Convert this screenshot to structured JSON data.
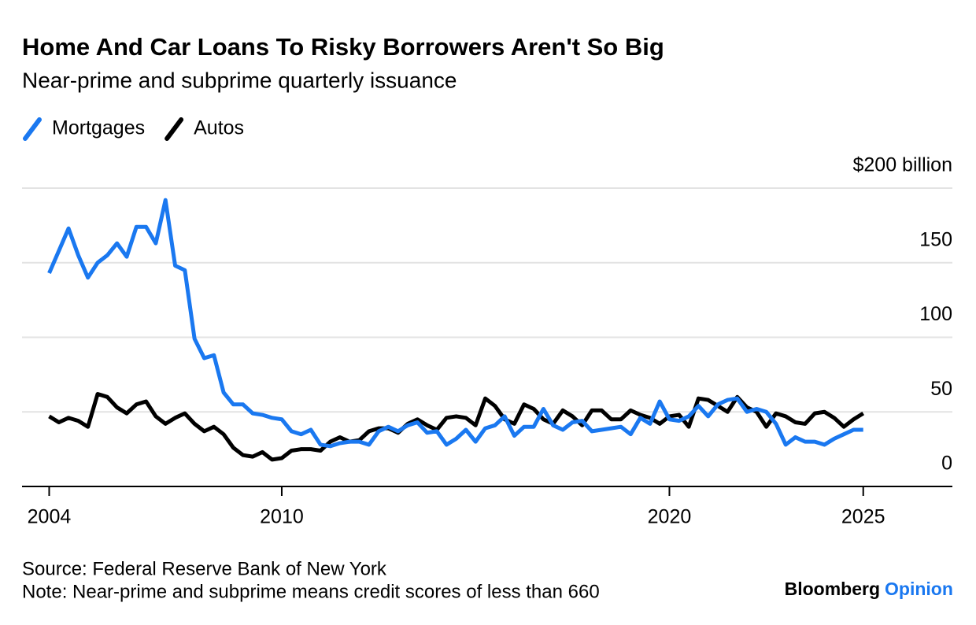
{
  "chart_data": {
    "type": "line",
    "title": "Home And Car Loans To Risky Borrowers Aren't So Big",
    "subtitle": "Near-prime and subprime quarterly issuance",
    "x": [
      2004,
      2004.25,
      2004.5,
      2004.75,
      2005,
      2005.25,
      2005.5,
      2005.75,
      2006,
      2006.25,
      2006.5,
      2006.75,
      2007,
      2007.25,
      2007.5,
      2007.75,
      2008,
      2008.25,
      2008.5,
      2008.75,
      2009,
      2009.25,
      2009.5,
      2009.75,
      2010,
      2010.25,
      2010.5,
      2010.75,
      2011,
      2011.25,
      2011.5,
      2011.75,
      2012,
      2012.25,
      2012.5,
      2012.75,
      2013,
      2013.25,
      2013.5,
      2013.75,
      2014,
      2014.25,
      2014.5,
      2014.75,
      2015,
      2015.25,
      2015.5,
      2015.75,
      2016,
      2016.25,
      2016.5,
      2016.75,
      2017,
      2017.25,
      2017.5,
      2017.75,
      2018,
      2018.25,
      2018.5,
      2018.75,
      2019,
      2019.25,
      2019.5,
      2019.75,
      2020,
      2020.25,
      2020.5,
      2020.75,
      2021,
      2021.25,
      2021.5,
      2021.75,
      2022,
      2022.25,
      2022.5,
      2022.75,
      2023,
      2023.25,
      2023.5,
      2023.75,
      2024,
      2024.25,
      2024.5,
      2024.75,
      2025
    ],
    "series": [
      {
        "name": "Mortgages",
        "color": "#1a78f0",
        "values": [
          143,
          158,
          173,
          155,
          140,
          150,
          155,
          163,
          154,
          174,
          174,
          163,
          192,
          148,
          145,
          99,
          86,
          88,
          63,
          55,
          55,
          49,
          48,
          46,
          45,
          37,
          35,
          38,
          28,
          27,
          29,
          30,
          30,
          28,
          37,
          40,
          37,
          41,
          43,
          36,
          37,
          28,
          32,
          38,
          30,
          39,
          41,
          47,
          34,
          40,
          40,
          52,
          41,
          38,
          43,
          44,
          37,
          38,
          39,
          40,
          35,
          46,
          42,
          57,
          45,
          44,
          47,
          54,
          47,
          55,
          58,
          59,
          50,
          52,
          50,
          42,
          28,
          33,
          30,
          30,
          28,
          32,
          35,
          38,
          38
        ]
      },
      {
        "name": "Autos",
        "color": "#000000",
        "values": [
          47,
          43,
          46,
          44,
          40,
          62,
          60,
          53,
          49,
          55,
          57,
          47,
          42,
          46,
          49,
          42,
          37,
          40,
          35,
          26,
          21,
          20,
          23,
          18,
          19,
          24,
          25,
          25,
          24,
          30,
          33,
          30,
          31,
          37,
          39,
          39,
          36,
          42,
          45,
          41,
          38,
          46,
          47,
          46,
          41,
          59,
          54,
          45,
          42,
          55,
          52,
          45,
          42,
          51,
          47,
          41,
          51,
          51,
          45,
          45,
          51,
          48,
          46,
          42,
          47,
          48,
          40,
          59,
          58,
          54,
          50,
          60,
          53,
          50,
          40,
          49,
          47,
          43,
          42,
          49,
          50,
          46,
          40,
          45,
          49
        ]
      }
    ],
    "xlim": [
      2003.3,
      2027.3
    ],
    "xticks": [
      2004,
      2010,
      2020,
      2025
    ],
    "ylim": [
      0,
      200
    ],
    "yticks": [
      0,
      50,
      100,
      150,
      {
        "value": 200,
        "label": "$200 billion"
      }
    ],
    "grid": true,
    "legend": "top-left",
    "source": "Source: Federal Reserve Bank of New York",
    "note": "Note: Near-prime and subprime means credit scores of less than 660",
    "brand": {
      "name": "Bloomberg",
      "section": "Opinion"
    }
  }
}
